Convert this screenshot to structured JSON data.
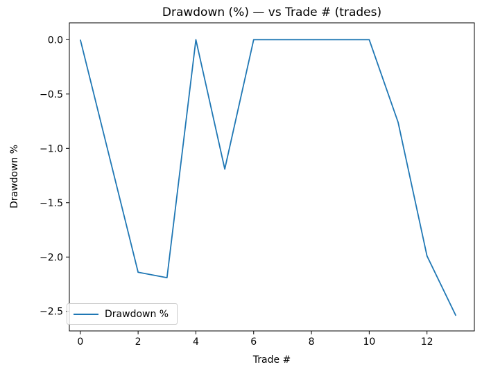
{
  "chart_data": {
    "type": "line",
    "title": "Drawdown (%) — vs Trade # (trades)",
    "xlabel": "Trade #",
    "ylabel": "Drawdown %",
    "legend": [
      "Drawdown %"
    ],
    "legend_position": "lower left",
    "grid": false,
    "xlim": [
      -0.38,
      13.64
    ],
    "ylim": [
      -2.68,
      0.155
    ],
    "xticks": {
      "values": [
        0,
        2,
        4,
        6,
        8,
        10,
        12
      ],
      "labels": [
        "0",
        "2",
        "4",
        "6",
        "8",
        "10",
        "12"
      ]
    },
    "yticks": {
      "values": [
        0,
        -0.5,
        -1.0,
        -1.5,
        -2.0,
        -2.5
      ],
      "labels": [
        "0.0",
        "−0.5",
        "−1.0",
        "−1.5",
        "−2.0",
        "−2.5"
      ]
    },
    "series": [
      {
        "name": "Drawdown %",
        "color": "#1f77b4",
        "x": [
          0,
          1,
          2,
          3,
          4,
          5,
          6,
          7,
          8,
          9,
          10,
          11,
          12,
          13
        ],
        "y": [
          0.0,
          -1.07,
          -2.14,
          -2.19,
          0.0,
          -1.19,
          0.0,
          0.0,
          0.0,
          0.0,
          0.0,
          -0.76,
          -1.99,
          -2.54
        ]
      }
    ]
  }
}
